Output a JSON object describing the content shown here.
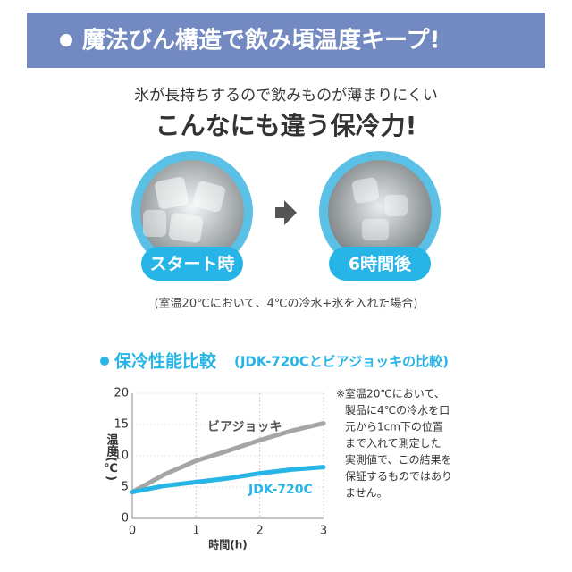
{
  "banner": {
    "title": "魔法びん構造で飲み頃温度キープ!"
  },
  "intro": {
    "subtitle": "氷が長持ちするので飲みものが薄まりにくい",
    "headline": "こんなにも違う保冷力!"
  },
  "images": [
    {
      "label": "スタート時"
    },
    {
      "label": "6時間後"
    }
  ],
  "condition_note": "(室温20℃において、4℃の冷水+氷を入れた場合)",
  "section": {
    "title": "保冷性能比較",
    "subtitle": "(JDK-720Cとビアジョッキの比較)"
  },
  "chart_data": {
    "type": "line",
    "y_label": "温度(℃)",
    "x_label": "時間(h)",
    "x": [
      0,
      0.5,
      1,
      1.5,
      2,
      2.5,
      3
    ],
    "series": [
      {
        "name": "ビアジョッキ",
        "color": "#a5a5a5",
        "values": [
          4.2,
          7,
          9.2,
          10.8,
          12.5,
          14,
          15.2
        ]
      },
      {
        "name": "JDK-720C",
        "color": "#27b4e6",
        "values": [
          4.2,
          5.2,
          5.8,
          6.4,
          7.2,
          7.8,
          8.2
        ]
      }
    ],
    "xlim": [
      0,
      3
    ],
    "ylim": [
      0,
      20
    ],
    "xticks": [
      0,
      1,
      2,
      3
    ],
    "yticks": [
      0,
      5,
      10,
      15,
      20
    ],
    "grid": true
  },
  "footnote": [
    "※室温20℃において、",
    "製品に4℃の冷水を口",
    "元から1cm下の位置",
    "まで入れて測定した",
    "実測値で、この結果を",
    "保証するものではあり",
    "ません。"
  ]
}
